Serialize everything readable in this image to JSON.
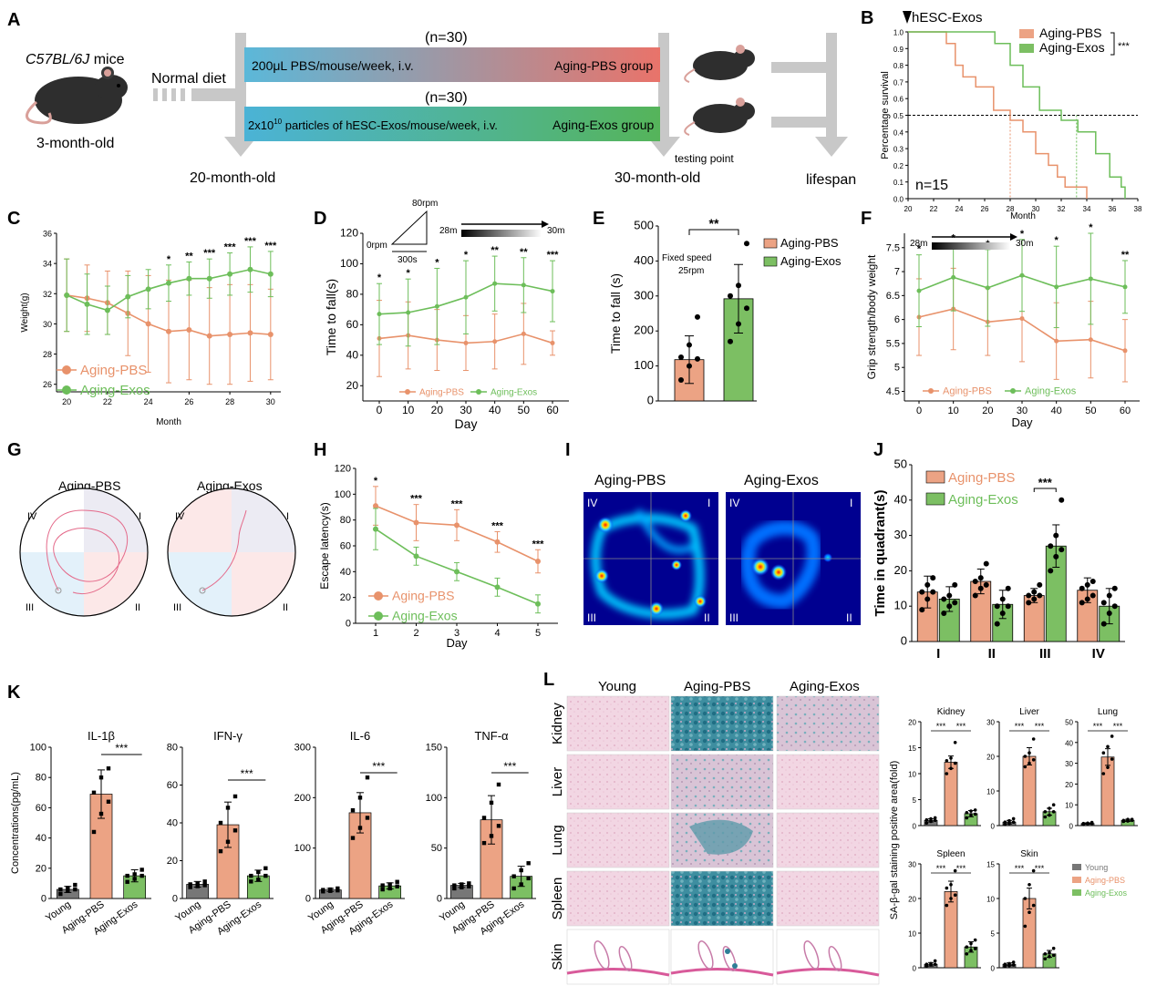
{
  "colors": {
    "pbs": "#E8926B",
    "exos": "#6DBE5A",
    "young": "#777777",
    "pbs_fill": "#ECA384",
    "exos_fill": "#7CBF63"
  },
  "panels": {
    "A": {
      "letter": "A",
      "strain": "C57BL/6J",
      "strain_suffix": " mice",
      "age_start": "3-month-old",
      "diet": "Normal diet",
      "n1": "(n=30)",
      "n2": "(n=30)",
      "bar1_left": "200μL PBS/mouse/week, i.v.",
      "bar1_right": "Aging-PBS group",
      "bar2_left": "2x10",
      "bar2_sup": "10",
      "bar2_mid": " particles  of  hESC-Exos/mouse/week, i.v.",
      "bar2_right": "Aging-Exos group",
      "age_mid": "20-month-old",
      "age_end": "30-month-old",
      "testing": "testing point",
      "lifespan": "lifespan"
    },
    "B": {
      "letter": "B",
      "arrow_label": "hESC-Exos",
      "n_label": "n=15",
      "sig": "***"
    },
    "C": {
      "letter": "C",
      "sig": [
        "*",
        "**",
        "***",
        "***",
        "***",
        "***"
      ]
    },
    "D": {
      "letter": "D",
      "speed_top": "80rpm",
      "speed_zero": "0rpm",
      "duration": "300s",
      "dist_start": "28m",
      "dist_end": "30m",
      "sig": [
        "*",
        "*",
        "*",
        "*",
        "**",
        "**",
        "***"
      ]
    },
    "E": {
      "letter": "E",
      "fixed1": "Fixed speed",
      "fixed2": "25rpm",
      "sig": "**"
    },
    "F": {
      "letter": "F",
      "dist_start": "28m",
      "dist_end": "30m",
      "sig": [
        "*",
        "*",
        "*",
        "*",
        "*",
        "*",
        "**"
      ]
    },
    "G": {
      "letter": "G",
      "title_pbs": "Aging-PBS",
      "title_exos": "Aging-Exos",
      "quads": [
        "IV",
        "I",
        "III",
        "II"
      ]
    },
    "H": {
      "letter": "H",
      "sig": [
        "*",
        "***",
        "***",
        "***",
        "***"
      ]
    },
    "I": {
      "letter": "I",
      "title_pbs": "Aging-PBS",
      "title_exos": "Aging-Exos",
      "quads": [
        "IV",
        "I",
        "III",
        "II"
      ]
    },
    "J": {
      "letter": "J",
      "sig": "***"
    },
    "K": {
      "letter": "K"
    },
    "L": {
      "letter": "L",
      "cols": [
        "Young",
        "Aging-PBS",
        "Aging-Exos"
      ],
      "rows": [
        "Kidney",
        "Liver",
        "Lung",
        "Spleen",
        "Skin"
      ],
      "ylabel": "SA-β-gal staining positive area(fold)",
      "legend": [
        "Young",
        "Aging-PBS",
        "Aging-Exos"
      ]
    }
  },
  "chart_data": [
    {
      "id": "B",
      "type": "line",
      "xlabel": "Month",
      "ylabel": "Percentage survival",
      "xlim": [
        20,
        38
      ],
      "ylim": [
        0,
        1.0
      ],
      "xticks": [
        20,
        22,
        24,
        26,
        28,
        30,
        32,
        34,
        36,
        38
      ],
      "yticks": [
        0,
        0.1,
        0.2,
        0.3,
        0.4,
        0.5,
        0.6,
        0.7,
        0.8,
        0.9,
        1.0
      ],
      "series": [
        {
          "name": "Aging-PBS",
          "x": [
            20,
            23,
            23.7,
            24.3,
            25.3,
            26.7,
            28,
            29,
            30,
            31,
            31.7,
            32.3,
            33,
            34
          ],
          "y": [
            1.0,
            0.93,
            0.8,
            0.73,
            0.67,
            0.53,
            0.47,
            0.4,
            0.27,
            0.2,
            0.13,
            0.07,
            0.07,
            0
          ]
        },
        {
          "name": "Aging-Exos",
          "x": [
            20,
            26.8,
            28,
            29,
            30.3,
            32,
            33.3,
            34.7,
            35.8,
            36.7,
            37
          ],
          "y": [
            1.0,
            0.93,
            0.8,
            0.67,
            0.53,
            0.47,
            0.4,
            0.27,
            0.13,
            0.07,
            0
          ]
        }
      ],
      "median_line": 0.5
    },
    {
      "id": "C",
      "type": "line",
      "xlabel": "Month",
      "ylabel": "Weight(g)",
      "xlim": [
        19.5,
        30.5
      ],
      "ylim": [
        25.5,
        36
      ],
      "xticks": [
        20,
        22,
        24,
        26,
        28,
        30
      ],
      "yticks": [
        26,
        28,
        30,
        32,
        34,
        36
      ],
      "x": [
        20,
        21,
        22,
        23,
        24,
        25,
        26,
        27,
        28,
        29,
        30
      ],
      "series": [
        {
          "name": "Aging-PBS",
          "values": [
            31.9,
            31.7,
            31.4,
            30.7,
            30.0,
            29.5,
            29.6,
            29.2,
            29.3,
            29.4,
            29.3
          ],
          "err": [
            2.4,
            2.2,
            2.1,
            2.8,
            3.2,
            3.4,
            3.3,
            3.2,
            3.3,
            3.2,
            3.0
          ]
        },
        {
          "name": "Aging-Exos",
          "values": [
            31.9,
            31.3,
            30.9,
            31.8,
            32.3,
            32.7,
            33.0,
            33.0,
            33.3,
            33.6,
            33.3
          ],
          "err": [
            2.4,
            2.0,
            1.6,
            1.4,
            1.3,
            1.2,
            1.1,
            1.3,
            1.4,
            1.5,
            1.5
          ]
        }
      ]
    },
    {
      "id": "D",
      "type": "line",
      "xlabel": "Day",
      "ylabel": "Time to fall(s)",
      "ylim": [
        10,
        120
      ],
      "yticks": [
        20,
        40,
        60,
        80,
        100,
        120
      ],
      "x": [
        0,
        10,
        20,
        30,
        40,
        50,
        60
      ],
      "series": [
        {
          "name": "Aging-PBS",
          "values": [
            51,
            53,
            50,
            48,
            49,
            54,
            48
          ],
          "err": [
            25,
            22,
            20,
            18,
            18,
            20,
            8
          ]
        },
        {
          "name": "Aging-Exos",
          "values": [
            67,
            68,
            72,
            78,
            87,
            86,
            82
          ],
          "err": [
            20,
            22,
            25,
            24,
            18,
            18,
            20
          ]
        }
      ]
    },
    {
      "id": "E",
      "type": "bar",
      "ylabel": "Time to fall (s)",
      "ylim": [
        0,
        500
      ],
      "yticks": [
        0,
        100,
        200,
        300,
        400,
        500
      ],
      "categories": [
        "Aging-PBS",
        "Aging-Exos"
      ],
      "values": [
        118,
        292
      ],
      "err": [
        68,
        98
      ],
      "points": [
        [
          60,
          100,
          120,
          125,
          160,
          240
        ],
        [
          170,
          220,
          265,
          300,
          330,
          450
        ]
      ]
    },
    {
      "id": "F",
      "type": "line",
      "xlabel": "Day",
      "ylabel": "Grip strength/body weight",
      "ylim": [
        4.3,
        7.8
      ],
      "yticks": [
        4.5,
        5.0,
        5.5,
        6.0,
        6.5,
        7.0,
        7.5
      ],
      "x": [
        0,
        10,
        20,
        30,
        40,
        50,
        60
      ],
      "series": [
        {
          "name": "Aging-PBS",
          "values": [
            6.05,
            6.22,
            5.95,
            6.02,
            5.55,
            5.58,
            5.35
          ],
          "err": [
            0.8,
            0.85,
            0.7,
            0.9,
            0.8,
            0.8,
            0.65
          ]
        },
        {
          "name": "Aging-Exos",
          "values": [
            6.6,
            6.88,
            6.66,
            6.92,
            6.68,
            6.85,
            6.68
          ],
          "err": [
            0.75,
            0.7,
            0.8,
            0.75,
            0.85,
            0.95,
            0.55
          ]
        }
      ]
    },
    {
      "id": "H",
      "type": "line",
      "xlabel": "Day",
      "ylabel": "Escape latency(s)",
      "ylim": [
        0,
        120
      ],
      "yticks": [
        0,
        20,
        40,
        60,
        80,
        100,
        120
      ],
      "x": [
        1,
        2,
        3,
        4,
        5
      ],
      "series": [
        {
          "name": "Aging-PBS",
          "values": [
            91,
            78,
            76,
            63,
            48
          ],
          "err": [
            15,
            14,
            12,
            8,
            9
          ]
        },
        {
          "name": "Aging-Exos",
          "values": [
            73,
            52,
            40,
            28,
            15
          ],
          "err": [
            16,
            7,
            7,
            7,
            7
          ]
        }
      ]
    },
    {
      "id": "J",
      "type": "bar",
      "ylabel": "Time in quadrant(s)",
      "ylim": [
        0,
        50
      ],
      "yticks": [
        0,
        10,
        20,
        30,
        40,
        50
      ],
      "categories": [
        "I",
        "II",
        "III",
        "IV"
      ],
      "series": [
        {
          "name": "Aging-PBS",
          "values": [
            14,
            17,
            13,
            14.5
          ],
          "err": [
            4.5,
            3.5,
            2,
            3.5
          ],
          "points": [
            [
              9,
              12,
              14,
              14,
              16,
              18
            ],
            [
              13,
              15,
              16,
              17,
              18,
              22
            ],
            [
              11,
              12,
              13,
              13,
              14,
              16
            ],
            [
              11,
              12,
              13,
              15,
              16,
              17
            ]
          ]
        },
        {
          "name": "Aging-Exos",
          "values": [
            12,
            10.5,
            27,
            10
          ],
          "err": [
            3.5,
            4,
            6,
            5
          ],
          "points": [
            [
              8,
              10,
              11,
              12,
              13,
              16
            ],
            [
              5,
              8,
              10,
              10,
              12,
              15
            ],
            [
              20,
              24,
              26,
              27,
              30,
              40
            ],
            [
              5,
              8,
              10,
              11,
              13,
              15
            ]
          ]
        }
      ]
    },
    {
      "id": "K1",
      "type": "bar",
      "title": "IL-1β",
      "ylabel": "Concentrations(pg/mL)",
      "ylim": [
        0,
        100
      ],
      "yticks": [
        0,
        20,
        40,
        60,
        80,
        100
      ],
      "categories": [
        "Young",
        "Aging-PBS",
        "Aging-Exos"
      ],
      "values": [
        6,
        69,
        15
      ],
      "err": [
        2,
        16,
        4
      ],
      "sig": "***",
      "points": [
        [
          3,
          5,
          6,
          6,
          7,
          9
        ],
        [
          44,
          56,
          64,
          70,
          80,
          86
        ],
        [
          11,
          13,
          15,
          15,
          16,
          19
        ]
      ]
    },
    {
      "id": "K2",
      "type": "bar",
      "title": "IFN-γ",
      "ylim": [
        0,
        80
      ],
      "yticks": [
        0,
        20,
        40,
        60,
        80
      ],
      "categories": [
        "Young",
        "Aging-PBS",
        "Aging-Exos"
      ],
      "values": [
        7.5,
        39,
        12
      ],
      "err": [
        1.5,
        12,
        3
      ],
      "sig": "***",
      "points": [
        [
          6,
          6.5,
          7,
          7.5,
          8,
          9
        ],
        [
          25,
          30,
          36,
          40,
          48,
          54
        ],
        [
          9,
          10,
          12,
          12,
          14,
          16
        ]
      ]
    },
    {
      "id": "K3",
      "type": "bar",
      "title": "IL-6",
      "ylim": [
        0,
        300
      ],
      "yticks": [
        0,
        100,
        200,
        300
      ],
      "categories": [
        "Young",
        "Aging-PBS",
        "Aging-Exos"
      ],
      "values": [
        17,
        170,
        25
      ],
      "err": [
        3,
        40,
        6
      ],
      "sig": "***",
      "points": [
        [
          14,
          15,
          16,
          17,
          18,
          20
        ],
        [
          120,
          140,
          160,
          175,
          200,
          240
        ],
        [
          18,
          20,
          24,
          26,
          28,
          33
        ]
      ]
    },
    {
      "id": "K4",
      "type": "bar",
      "title": "TNF-α",
      "ylim": [
        0,
        150
      ],
      "yticks": [
        0,
        50,
        100,
        150
      ],
      "categories": [
        "Young",
        "Aging-PBS",
        "Aging-Exos"
      ],
      "values": [
        13,
        78,
        22
      ],
      "err": [
        2,
        24,
        10
      ],
      "sig": "***",
      "points": [
        [
          10,
          11,
          12,
          13,
          14,
          15
        ],
        [
          55,
          62,
          72,
          80,
          95,
          113
        ],
        [
          10,
          14,
          20,
          22,
          28,
          35
        ]
      ]
    },
    {
      "id": "L-Kidney",
      "type": "bar",
      "title": "Kidney",
      "ylim": [
        0,
        20
      ],
      "yticks": [
        0,
        5,
        10,
        15,
        20
      ],
      "categories": [
        "Young",
        "Aging-PBS",
        "Aging-Exos"
      ],
      "values": [
        1,
        12.2,
        2.3
      ],
      "err": [
        0.3,
        1.2,
        0.6
      ],
      "sig": [
        "***",
        "***"
      ],
      "points": [
        [
          0.5,
          0.8,
          1,
          1.1,
          1.3,
          1.5
        ],
        [
          10,
          11,
          12,
          12.5,
          13,
          16
        ],
        [
          1.5,
          2,
          2.2,
          2.5,
          2.8,
          3
        ]
      ]
    },
    {
      "id": "L-Liver",
      "type": "bar",
      "title": "Liver",
      "ylim": [
        0,
        30
      ],
      "yticks": [
        0,
        10,
        20,
        30
      ],
      "categories": [
        "Young",
        "Aging-PBS",
        "Aging-Exos"
      ],
      "values": [
        1,
        20,
        4
      ],
      "err": [
        0.5,
        2.5,
        1
      ],
      "sig": [
        "***",
        "***"
      ],
      "points": [
        [
          0.3,
          0.6,
          1,
          1,
          1.4,
          2
        ],
        [
          17,
          18,
          19,
          20,
          21,
          25
        ],
        [
          2.5,
          3,
          4,
          4,
          5,
          6
        ]
      ]
    },
    {
      "id": "L-Lung",
      "type": "bar",
      "title": "Lung",
      "ylim": [
        0,
        50
      ],
      "yticks": [
        0,
        10,
        20,
        30,
        40,
        50
      ],
      "categories": [
        "Young",
        "Aging-PBS",
        "Aging-Exos"
      ],
      "values": [
        1,
        33,
        2.5
      ],
      "err": [
        0.3,
        4,
        0.5
      ],
      "sig": [
        "***",
        "***"
      ],
      "points": [
        [
          0.5,
          0.8,
          1,
          1,
          1.2,
          1.5
        ],
        [
          25,
          28,
          32,
          35,
          38,
          43
        ],
        [
          2,
          2.2,
          2.5,
          2.5,
          3,
          3
        ]
      ]
    },
    {
      "id": "L-Spleen",
      "type": "bar",
      "title": "Spleen",
      "ylim": [
        0,
        30
      ],
      "yticks": [
        0,
        10,
        20,
        30
      ],
      "categories": [
        "Young",
        "Aging-PBS",
        "Aging-Exos"
      ],
      "values": [
        1,
        22,
        6
      ],
      "err": [
        0.5,
        3,
        1.5
      ],
      "sig": [
        "***",
        "***"
      ],
      "points": [
        [
          0.5,
          0.8,
          1,
          1,
          1.2,
          2
        ],
        [
          18,
          20,
          21,
          23,
          24,
          28
        ],
        [
          4,
          5,
          5.5,
          6,
          7,
          8
        ]
      ]
    },
    {
      "id": "L-Skin",
      "type": "bar",
      "title": "Skin",
      "ylim": [
        0,
        15
      ],
      "yticks": [
        0,
        5,
        10,
        15
      ],
      "categories": [
        "Young",
        "Aging-PBS",
        "Aging-Exos"
      ],
      "values": [
        0.5,
        10,
        2
      ],
      "err": [
        0.2,
        1.5,
        0.5
      ],
      "sig": [
        "***",
        "***"
      ],
      "points": [
        [
          0.2,
          0.3,
          0.4,
          0.5,
          0.6,
          0.8
        ],
        [
          6,
          8,
          9,
          10,
          12,
          14
        ],
        [
          1.3,
          1.6,
          1.8,
          2,
          2.2,
          2.8
        ]
      ]
    }
  ]
}
